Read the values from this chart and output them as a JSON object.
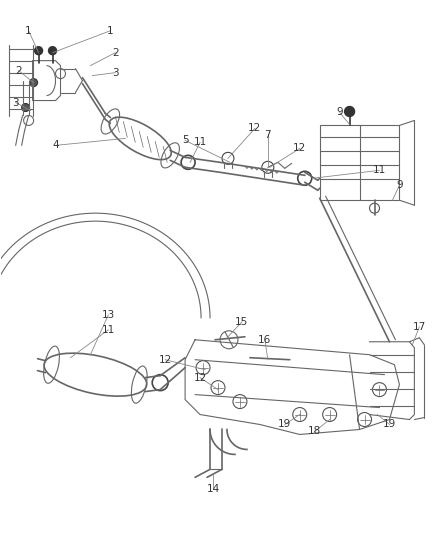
{
  "bg_color": "#ffffff",
  "line_color": "#666666",
  "dark_color": "#333333",
  "label_color": "#333333",
  "callout_color": "#888888",
  "fig_width": 4.39,
  "fig_height": 5.33,
  "dpi": 100
}
